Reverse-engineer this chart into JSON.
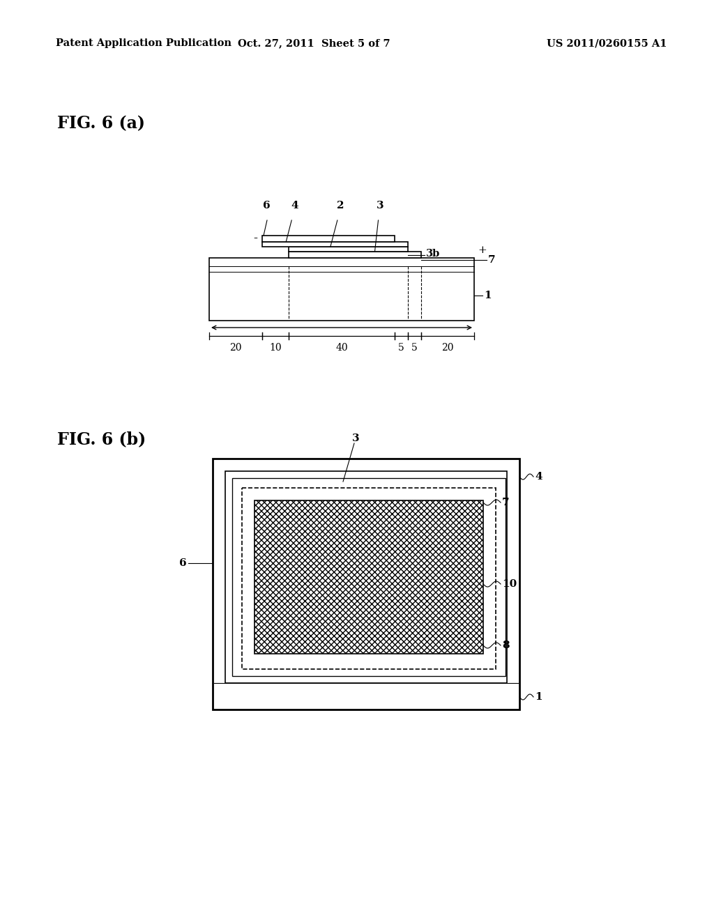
{
  "bg_color": "#ffffff",
  "header_left": "Patent Application Publication",
  "header_mid": "Oct. 27, 2011  Sheet 5 of 7",
  "header_right": "US 2011/0260155 A1",
  "fig6a_label": "FIG. 6 (a)",
  "fig6b_label": "FIG. 6 (b)",
  "line_color": "#000000",
  "lw": 1.2,
  "tlw": 2.0
}
